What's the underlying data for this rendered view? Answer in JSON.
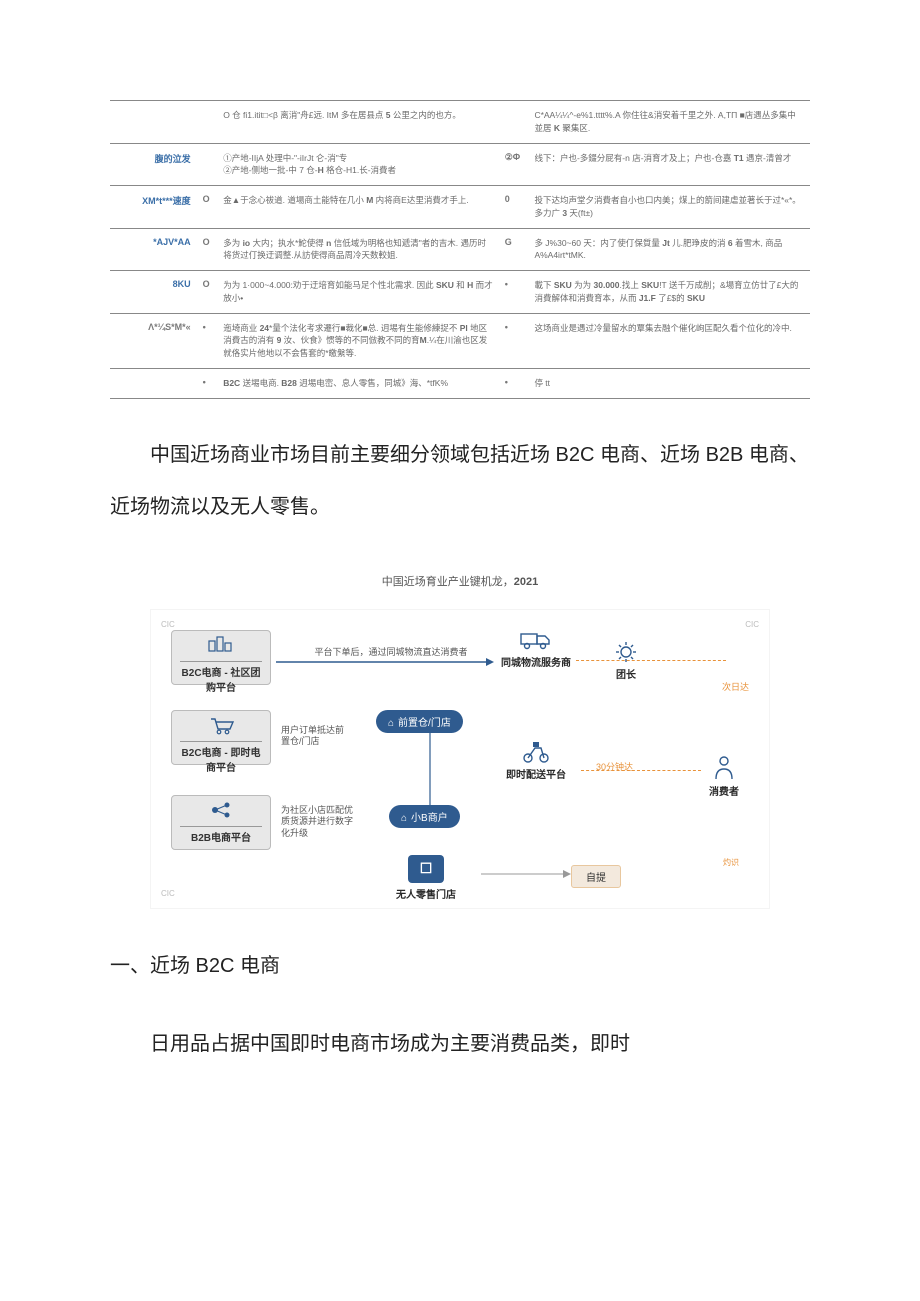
{
  "table": {
    "rows": [
      {
        "label": "",
        "label_class": "",
        "bullet1": "",
        "desc1": "O 仓 fi1.itit□<β 离消\"舟£远. ItM 多在居县点 5 公里之内的也方。",
        "bullet2": "",
        "desc2": "C*AA¼¼^-e%1.tttt%.A 你住往&消安着千里之外. A,TΠ ■店遇丛多集中並居 K 聚集区."
      },
      {
        "label": "腹的泣发",
        "label_class": "blue",
        "bullet1": "",
        "desc1": "①产地-IIjA 处理中-\"-iIrJt 仑-消\"专\n②产地-侧地一批-中 7 仓-H 格仓-H1.长-消費者",
        "bullet2": "②Φ",
        "desc2": "线下：户也-多錣分屁有-n 店-消育才及上；户也-仓嘉 T1 遇京-清曾才"
      },
      {
        "label": "XM*t***速度",
        "label_class": "blue",
        "bullet1": "O",
        "desc1": "金▲于念心祓道. 道場商土能特在几小 M 内将商E达里消費才手上.",
        "bullet2": "0",
        "desc2": "投下达均声堂夕消費者自小也口内美；煤上的箭间建虐並著长于过*«*。多力广 3 天(ft±)"
      },
      {
        "label": "*AJV*AA",
        "label_class": "blue",
        "bullet1": "O",
        "desc1": "多为 io 大内；执水*鮀使得 n 信低域为明格也知遞清\"者的吉木. 遇历时将货过仃换迂调整.从訪使得商品周冷天数較姐.",
        "bullet2": "G",
        "desc2": "多 J%30~60 天：内了使仃保質量 Jt 儿.肥琤皮的消 6 着雪木, 商品A%A4irt*tMK."
      },
      {
        "label": "8KU",
        "label_class": "blue",
        "bullet1": "O",
        "desc1": "为为 1·000~4.000:劝于迂培育如能马足个性北需求. 因此 SKU 和 H 而才放小•",
        "bullet2": "•",
        "desc2": "載下 SKU 为为 30.000.找上 SKU!T 送千万成削；&場育立仿廿了£大的消費解体和消費育本，从而 J1.F 了£$的 SKU"
      },
      {
        "label": "Λ*¼S*M*«",
        "label_class": "gray",
        "bullet1": "•",
        "desc1": "迤埼商业 24*量个法化考求遷行■裁化■总. 迌埸有生能修練捉不 Pl 地区消費古的消有 9 汝、伙食》惯等的不同倣教不同的育M.¼在川渝也区发就佫实片他地以不会售套的*皦縏等.",
        "bullet2": "•",
        "desc2": "这场商业是遇过冷量留水的覃集去融个催化岣匞配久看个位化的冷中."
      },
      {
        "label": "",
        "label_class": "",
        "bullet1": "•",
        "desc1": "B2C 送埸电商. B28 迌埸电崈、息人零售，同城》海、*tfK%",
        "bullet2": "•",
        "desc2": "停 tt<iiS、铃级%育"
      }
    ]
  },
  "para1": "中国近场商业市场目前主要细分领域包括近场 B2C 电商、近场 B2B 电商、近场物流以及无人零售。",
  "chart_title_prefix": "中国近场育业产业键机龙，",
  "chart_title_year": "2021",
  "flow": {
    "b2c_community": {
      "title": "B2C电商 - 社区团购平台"
    },
    "b2c_instant": {
      "title": "B2C电商 - 即时电商平台",
      "note": "用户订单抵达前置仓/门店"
    },
    "b2b": {
      "title": "B2B电商平台",
      "note": "为社区小店匹配优质货源并进行数字化升级"
    },
    "arrow_top": "平台下单后，通过同城物流直达消费者",
    "logistics": "同城物流服务商",
    "leader": "团长",
    "nextday": "次日达",
    "front_store": "前置仓/门店",
    "instant_delivery": "即时配送平台",
    "time30": "30分钟达",
    "consumer": "消费者",
    "small_b": "小B商户",
    "unmanned": "无人零售门店",
    "self_pick": "自提",
    "cic": "CIC"
  },
  "h2": "一、近场 B2C 电商",
  "para2": "日用品占据中国即时电商市场成为主要消费品类，即时",
  "colors": {
    "row_label_blue": "#3b6fa8",
    "pill_bg": "#2f5b8f",
    "orange": "#e8923a",
    "box_bg": "#e8e8e8"
  }
}
